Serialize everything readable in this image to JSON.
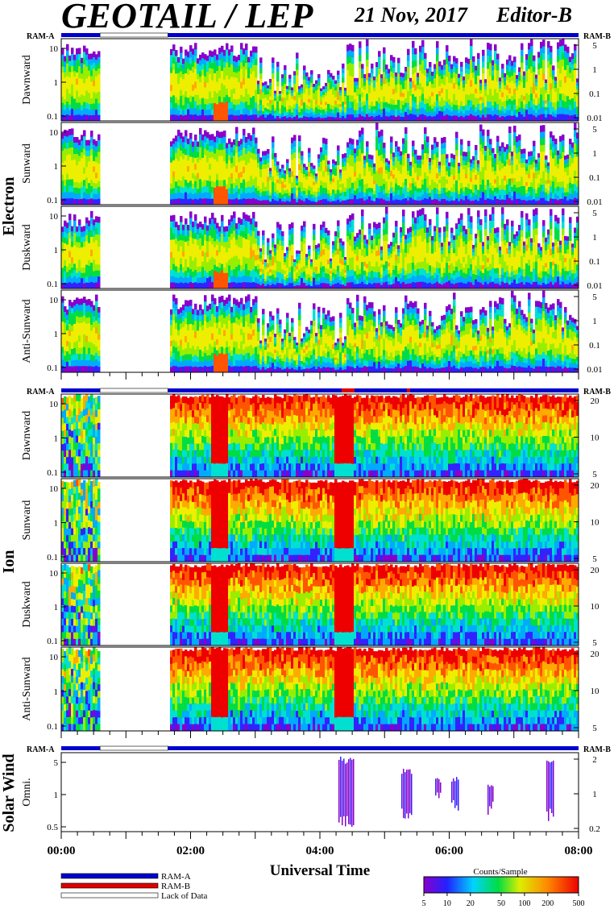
{
  "header": {
    "title": "GEOTAIL / LEP",
    "date": "21 Nov, 2017",
    "editor": "Editor-B"
  },
  "ram": {
    "left_label": "RAM-A",
    "right_label": "RAM-B"
  },
  "legend": {
    "items": [
      {
        "label": "RAM-A",
        "color": "#0000cc"
      },
      {
        "label": "RAM-B",
        "color": "#dd0000"
      },
      {
        "label": "Lack of Data",
        "color": "#ffffff"
      }
    ]
  },
  "colorbar": {
    "title": "Counts/Sample",
    "ticks": [
      "5",
      "10",
      "20",
      "50",
      "100",
      "200",
      "500"
    ],
    "values": [
      5,
      10,
      20,
      50,
      100,
      200,
      500
    ]
  },
  "xaxis": {
    "label": "Universal Time",
    "ticks": [
      "00:00",
      "02:00",
      "04:00",
      "06:00",
      "08:00"
    ],
    "range_hours": [
      0,
      8
    ]
  },
  "chart_data": {
    "type": "heatmap",
    "gap_hours": [
      0.6,
      1.65
    ],
    "groups": [
      {
        "label": "Electron",
        "panels": [
          {
            "name": "Dawnward",
            "left_ticks": [
              "10",
              "1",
              "0.1"
            ],
            "right_ticks": [
              "5",
              "1",
              "0.1",
              "0.01"
            ]
          },
          {
            "name": "Sunward",
            "left_ticks": [
              "10",
              "1",
              "0.1"
            ],
            "right_ticks": [
              "5",
              "1",
              "0.1",
              "0.01"
            ]
          },
          {
            "name": "Duskward",
            "left_ticks": [
              "10",
              "1",
              "0.1"
            ],
            "right_ticks": [
              "5",
              "1",
              "0.1",
              "0.01"
            ]
          },
          {
            "name": "Anti-Sunward",
            "left_ticks": [
              "10",
              "1",
              "0.1"
            ],
            "right_ticks": [
              "5",
              "1",
              "0.1",
              "0.01"
            ]
          }
        ]
      },
      {
        "label": "Ion",
        "panels": [
          {
            "name": "Dawnward",
            "left_ticks": [
              "10",
              "1",
              "0.1"
            ],
            "right_ticks": [
              "20",
              "10",
              "5"
            ]
          },
          {
            "name": "Sunward",
            "left_ticks": [
              "10",
              "1",
              "0.1"
            ],
            "right_ticks": [
              "20",
              "10",
              "5"
            ]
          },
          {
            "name": "Duskward",
            "left_ticks": [
              "10",
              "1",
              "0.1"
            ],
            "right_ticks": [
              "20",
              "10",
              "5"
            ]
          },
          {
            "name": "Anti-Sunward",
            "left_ticks": [
              "10",
              "1",
              "0.1"
            ],
            "right_ticks": [
              "20",
              "10",
              "5"
            ]
          }
        ]
      },
      {
        "label": "Solar Wind",
        "panels": [
          {
            "name": "Omni.",
            "left_ticks": [
              "5",
              "1",
              "0.5"
            ],
            "right_ticks": [
              "2",
              "1",
              "0.2"
            ]
          }
        ]
      }
    ]
  }
}
